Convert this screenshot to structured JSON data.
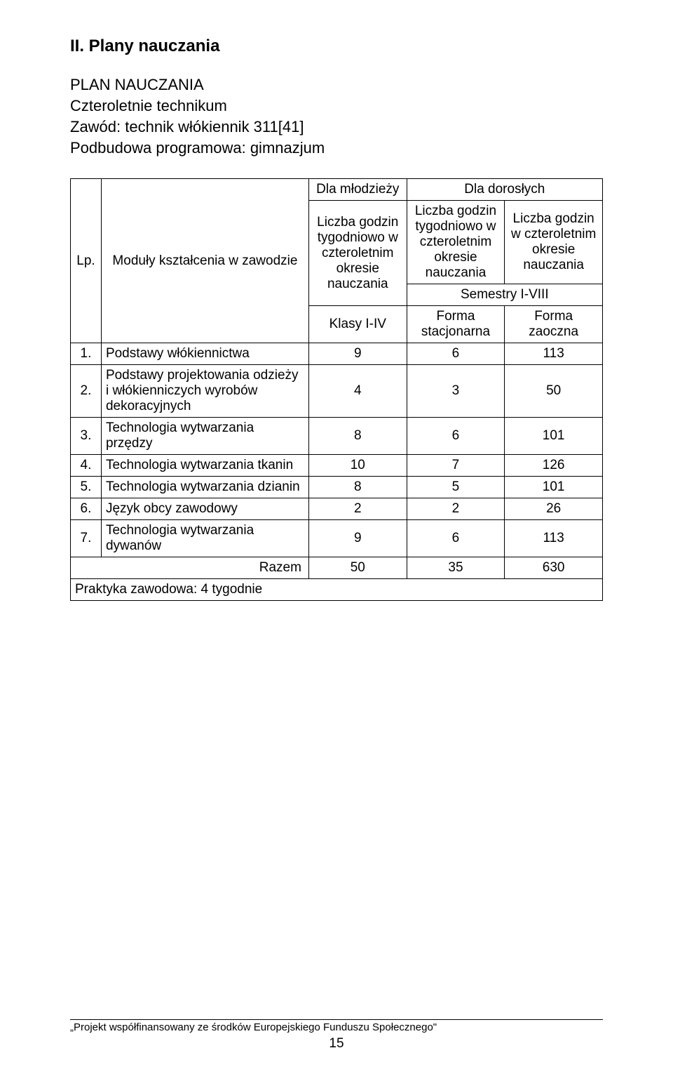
{
  "heading": "II. Plany nauczania",
  "subheading": "PLAN NAUCZANIA",
  "line1": "Czteroletnie technikum",
  "line2": "Zawód: technik włókiennik 311[41]",
  "line3": "Podbudowa programowa: gimnazjum",
  "header": {
    "lp": "Lp.",
    "modul": "Moduły kształcenia w zawodzie",
    "mlodziezy": "Dla młodzieży",
    "doroslych": "Dla dorosłych",
    "col1": "Liczba godzin tygodniowo w czteroletnim okresie nauczania",
    "col2": "Liczba godzin tygodniowo w czteroletnim okresie nauczania",
    "col3": "Liczba godzin w czteroletnim okresie nauczania",
    "semestry": "Semestry I-VIII",
    "klasy": "Klasy I-IV",
    "forma_stac": "Forma stacjonarna",
    "forma_zao": "Forma zaoczna"
  },
  "rows": [
    {
      "n": "1.",
      "name": "Podstawy włókiennictwa",
      "a": "9",
      "b": "6",
      "c": "113"
    },
    {
      "n": "2.",
      "name": "Podstawy projektowania odzieży i włókienniczych wyrobów dekoracyjnych",
      "a": "4",
      "b": "3",
      "c": "50"
    },
    {
      "n": "3.",
      "name": "Technologia wytwarzania przędzy",
      "a": "8",
      "b": "6",
      "c": "101"
    },
    {
      "n": "4.",
      "name": "Technologia wytwarzania tkanin",
      "a": "10",
      "b": "7",
      "c": "126"
    },
    {
      "n": "5.",
      "name": "Technologia wytwarzania dzianin",
      "a": "8",
      "b": "5",
      "c": "101"
    },
    {
      "n": "6.",
      "name": "Język obcy zawodowy",
      "a": "2",
      "b": "2",
      "c": "26"
    },
    {
      "n": "7.",
      "name": "Technologia wytwarzania dywanów",
      "a": "9",
      "b": "6",
      "c": "113"
    }
  ],
  "totals": {
    "label": "Razem",
    "a": "50",
    "b": "35",
    "c": "630"
  },
  "praktyka": "Praktyka zawodowa: 4 tygodnie",
  "footer": "„Projekt współfinansowany ze środków Europejskiego Funduszu Społecznego\"",
  "pagenum": "15",
  "layout": {
    "col_widths": {
      "lp": "44px",
      "name": "298px",
      "a": "140px",
      "b": "140px",
      "c": "140px"
    }
  }
}
